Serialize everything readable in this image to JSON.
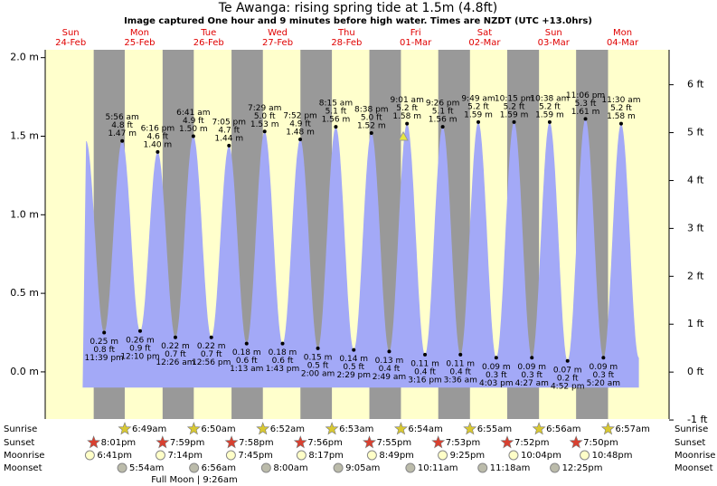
{
  "chart_data": {
    "type": "tide",
    "title": "Te Awanga: rising  spring tide at 1.5m (4.8ft)",
    "subtitle": "Image captured One hour and 9 minutes before high water. Times are NZDT (UTC +13.0hrs)",
    "days": [
      {
        "day": "Sun",
        "date": "24-Feb"
      },
      {
        "day": "Mon",
        "date": "25-Feb"
      },
      {
        "day": "Tue",
        "date": "26-Feb"
      },
      {
        "day": "Wed",
        "date": "27-Feb"
      },
      {
        "day": "Thu",
        "date": "28-Feb"
      },
      {
        "day": "Fri",
        "date": "01-Mar"
      },
      {
        "day": "Sat",
        "date": "02-Mar"
      },
      {
        "day": "Sun",
        "date": "03-Mar"
      },
      {
        "day": "Mon",
        "date": "04-Mar"
      }
    ],
    "extremes": [
      {
        "time": "11:39 pm",
        "height": 0.25,
        "height_label": "0.25 m",
        "feet_label": "0.8 ft"
      },
      {
        "time": "5:56 am",
        "height": 1.47,
        "height_label": "1.47 m",
        "feet_label": "4.8 ft"
      },
      {
        "time": "12:10 pm",
        "height": 0.26,
        "height_label": "0.26 m",
        "feet_label": "0.9 ft"
      },
      {
        "time": "6:16 pm",
        "height": 1.4,
        "height_label": "1.40 m",
        "feet_label": "4.6 ft"
      },
      {
        "time": "12:26 am",
        "height": 0.22,
        "height_label": "0.22 m",
        "feet_label": "0.7 ft"
      },
      {
        "time": "6:41 am",
        "height": 1.5,
        "height_label": "1.50 m",
        "feet_label": "4.9 ft"
      },
      {
        "time": "12:56 pm",
        "height": 0.22,
        "height_label": "0.22 m",
        "feet_label": "0.7 ft"
      },
      {
        "time": "7:05 pm",
        "height": 1.44,
        "height_label": "1.44 m",
        "feet_label": "4.7 ft"
      },
      {
        "time": "1:13 am",
        "height": 0.18,
        "height_label": "0.18 m",
        "feet_label": "0.6 ft"
      },
      {
        "time": "7:29 am",
        "height": 1.53,
        "height_label": "1.53 m",
        "feet_label": "5.0 ft"
      },
      {
        "time": "1:43 pm",
        "height": 0.18,
        "height_label": "0.18 m",
        "feet_label": "0.6 ft"
      },
      {
        "time": "7:52 pm",
        "height": 1.48,
        "height_label": "1.48 m",
        "feet_label": "4.9 ft"
      },
      {
        "time": "2:00 am",
        "height": 0.15,
        "height_label": "0.15 m",
        "feet_label": "0.5 ft"
      },
      {
        "time": "8:15 am",
        "height": 1.56,
        "height_label": "1.56 m",
        "feet_label": "5.1 ft"
      },
      {
        "time": "2:29 pm",
        "height": 0.14,
        "height_label": "0.14 m",
        "feet_label": "0.5 ft"
      },
      {
        "time": "8:38 pm",
        "height": 1.52,
        "height_label": "1.52 m",
        "feet_label": "5.0 ft"
      },
      {
        "time": "2:49 am",
        "height": 0.13,
        "height_label": "0.13 m",
        "feet_label": "0.4 ft"
      },
      {
        "time": "9:01 am",
        "height": 1.58,
        "height_label": "1.58 m",
        "feet_label": "5.2 ft"
      },
      {
        "time": "3:16 pm",
        "height": 0.11,
        "height_label": "0.11 m",
        "feet_label": "0.4 ft"
      },
      {
        "time": "9:26 pm",
        "height": 1.56,
        "height_label": "1.56 m",
        "feet_label": "5.1 ft"
      },
      {
        "time": "3:36 am",
        "height": 0.11,
        "height_label": "0.11 m",
        "feet_label": "0.4 ft"
      },
      {
        "time": "9:49 am",
        "height": 1.59,
        "height_label": "1.59 m",
        "feet_label": "5.2 ft"
      },
      {
        "time": "4:03 pm",
        "height": 0.09,
        "height_label": "0.09 m",
        "feet_label": "0.3 ft"
      },
      {
        "time": "10:15 pm",
        "height": 1.59,
        "height_label": "1.59 m",
        "feet_label": "5.2 ft"
      },
      {
        "time": "4:27 am",
        "height": 0.09,
        "height_label": "0.09 m",
        "feet_label": "0.3 ft"
      },
      {
        "time": "10:38 am",
        "height": 1.59,
        "height_label": "1.59 m",
        "feet_label": "5.2 ft"
      },
      {
        "time": "4:52 pm",
        "height": 0.07,
        "height_label": "0.07 m",
        "feet_label": "0.2 ft"
      },
      {
        "time": "11:06 pm",
        "height": 1.61,
        "height_label": "1.61 m",
        "feet_label": "5.3 ft"
      },
      {
        "time": "5:20 am",
        "height": 0.09,
        "height_label": "0.09 m",
        "feet_label": "0.3 ft"
      },
      {
        "time": "11:30 am",
        "height": 1.58,
        "height_label": "1.58 m",
        "feet_label": "5.2 ft"
      }
    ],
    "ylim": [
      -0.3,
      2.05
    ],
    "yticks": [
      {
        "value": 0,
        "label": "0.0 m"
      },
      {
        "value": 0.5,
        "label": "0.5 m"
      },
      {
        "value": 1,
        "label": "1.0 m"
      },
      {
        "value": 1.5,
        "label": "1.5 m"
      },
      {
        "value": 2,
        "label": "2.0 m"
      }
    ],
    "y2lim": [
      -0.98,
      6.73
    ],
    "y2ticks": [
      {
        "value": -1,
        "label": "-1 ft"
      },
      {
        "value": 0,
        "label": "0 ft"
      },
      {
        "value": 1,
        "label": "1 ft"
      },
      {
        "value": 2,
        "label": "2 ft"
      },
      {
        "value": 3,
        "label": "3 ft"
      },
      {
        "value": 4,
        "label": "4 ft"
      },
      {
        "value": 5,
        "label": "5 ft"
      },
      {
        "value": 6,
        "label": "6 ft"
      }
    ],
    "rows": [
      {
        "label": "Sunrise",
        "times": [
          null,
          "6:49am",
          "6:50am",
          "6:52am",
          "6:53am",
          "6:54am",
          "6:55am",
          "6:56am",
          "6:57am"
        ]
      },
      {
        "label": "Sunset",
        "times": [
          "8:01pm",
          "7:59pm",
          "7:58pm",
          "7:56pm",
          "7:55pm",
          "7:53pm",
          "7:52pm",
          "7:50pm",
          null
        ]
      },
      {
        "label": "Moonrise",
        "times": [
          "6:41pm",
          "7:14pm",
          "7:45pm",
          "8:17pm",
          "8:49pm",
          "9:25pm",
          "10:04pm",
          "10:48pm",
          null
        ]
      },
      {
        "label": "Moonset",
        "times": [
          null,
          "5:54am",
          "6:56am",
          "8:00am",
          "9:05am",
          "10:11am",
          "11:18am",
          "12:25pm",
          null
        ]
      }
    ],
    "moon_phase": "Full Moon | 9:26am"
  }
}
